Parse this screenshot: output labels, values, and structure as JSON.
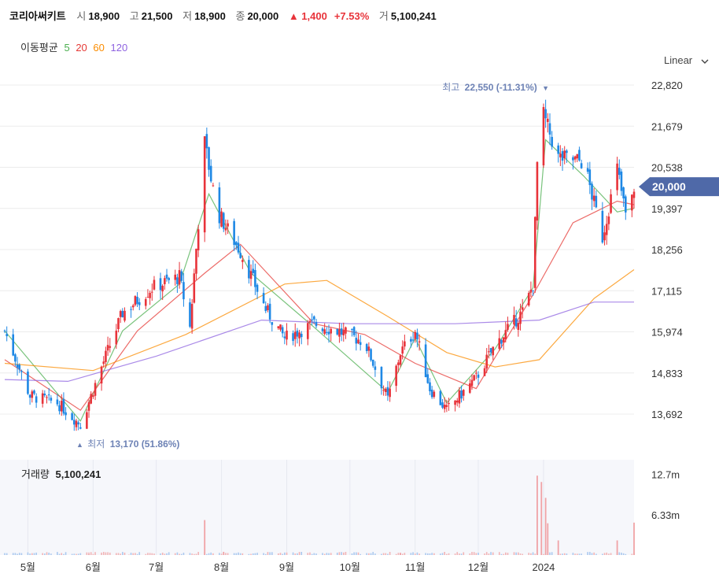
{
  "stock": {
    "name": "코리아써키트",
    "open_label": "시",
    "open": "18,900",
    "high_label": "고",
    "high": "21,500",
    "low_label": "저",
    "low": "18,900",
    "close_label": "종",
    "close": "20,000",
    "change": "▲ 1,400",
    "change_pct": "+7.53%",
    "volume_label": "거",
    "volume": "5,100,241"
  },
  "ma_legend": {
    "label": "이동평균",
    "periods": [
      "5",
      "20",
      "60",
      "120"
    ],
    "colors": [
      "#4caf50",
      "#e53935",
      "#fb8c00",
      "#8e63e0"
    ]
  },
  "scale_toggle": {
    "label": "Linear",
    "icon": "chevron-down-icon"
  },
  "colors": {
    "up": "#e8333a",
    "down": "#1e88e5",
    "current_price_bg": "#4f69a8",
    "annotation": "#6d82b5",
    "grid": "#ececec"
  },
  "chart_data": {
    "type": "candlestick",
    "price_axis": {
      "ticks": [
        "22,820",
        "21,679",
        "20,538",
        "19,397",
        "18,256",
        "17,115",
        "15,974",
        "14,833",
        "13,692"
      ],
      "ylim": [
        13100,
        23400
      ]
    },
    "current_price": "20,000",
    "high_annotation": {
      "label": "최고",
      "value": "22,550 (-11.31%)",
      "marker": "▼"
    },
    "low_annotation": {
      "label": "최저",
      "value": "13,170 (51.86%)",
      "marker": "▲"
    },
    "volume_panel": {
      "label": "거래량",
      "value": "5,100,241",
      "ticks": [
        "12.7m",
        "6.33m"
      ]
    },
    "time_axis": [
      "5월",
      "6월",
      "7월",
      "8월",
      "9월",
      "10월",
      "11월",
      "12월",
      "2024"
    ],
    "price_path": [
      [
        "2023-04-20",
        16000
      ],
      [
        "2023-05-02",
        14200
      ],
      [
        "2023-05-15",
        14000
      ],
      [
        "2023-05-26",
        13400
      ],
      [
        "2023-06-05",
        15000
      ],
      [
        "2023-06-15",
        16500
      ],
      [
        "2023-06-29",
        17200
      ],
      [
        "2023-07-12",
        17500
      ],
      [
        "2023-07-17",
        16100
      ],
      [
        "2023-07-24",
        21200
      ],
      [
        "2023-07-30",
        19300
      ],
      [
        "2023-08-10",
        18200
      ],
      [
        "2023-08-22",
        16600
      ],
      [
        "2023-08-31",
        15800
      ],
      [
        "2023-09-14",
        16200
      ],
      [
        "2023-09-25",
        16000
      ],
      [
        "2023-10-08",
        15700
      ],
      [
        "2023-10-19",
        14100
      ],
      [
        "2023-10-25",
        15400
      ],
      [
        "2023-11-01",
        16000
      ],
      [
        "2023-11-08",
        14400
      ],
      [
        "2023-11-16",
        13800
      ],
      [
        "2023-11-30",
        14700
      ],
      [
        "2023-12-09",
        15600
      ],
      [
        "2023-12-23",
        16600
      ],
      [
        "2023-12-27",
        17300
      ],
      [
        "2023-12-30",
        22300
      ],
      [
        "2024-01-08",
        20800
      ],
      [
        "2024-01-20",
        20700
      ],
      [
        "2024-01-29",
        18600
      ],
      [
        "2024-02-05",
        20500
      ],
      [
        "2024-02-10",
        18900
      ],
      [
        "2024-02-13",
        20000
      ]
    ],
    "ma_series": [
      {
        "name": "5",
        "color": "#4caf50",
        "values": [
          [
            "2023-04-20",
            16000
          ],
          [
            "2023-05-26",
            13500
          ],
          [
            "2023-06-15",
            16000
          ],
          [
            "2023-07-12",
            17300
          ],
          [
            "2023-07-26",
            19800
          ],
          [
            "2023-08-15",
            17600
          ],
          [
            "2023-09-14",
            16100
          ],
          [
            "2023-10-19",
            14300
          ],
          [
            "2023-11-01",
            15800
          ],
          [
            "2023-11-16",
            14000
          ],
          [
            "2023-12-09",
            15500
          ],
          [
            "2023-12-27",
            17200
          ],
          [
            "2024-01-02",
            21300
          ],
          [
            "2024-01-20",
            20300
          ],
          [
            "2024-02-05",
            19300
          ],
          [
            "2024-02-13",
            19400
          ]
        ]
      },
      {
        "name": "20",
        "color": "#e53935",
        "values": [
          [
            "2023-04-20",
            15200
          ],
          [
            "2023-05-26",
            13800
          ],
          [
            "2023-06-22",
            16000
          ],
          [
            "2023-07-24",
            17600
          ],
          [
            "2023-08-10",
            18400
          ],
          [
            "2023-09-14",
            16200
          ],
          [
            "2023-10-08",
            15900
          ],
          [
            "2023-11-01",
            15100
          ],
          [
            "2023-11-30",
            14400
          ],
          [
            "2023-12-27",
            17000
          ],
          [
            "2024-01-15",
            19000
          ],
          [
            "2024-02-05",
            19600
          ],
          [
            "2024-02-13",
            19500
          ]
        ]
      },
      {
        "name": "60",
        "color": "#fb8c00",
        "values": [
          [
            "2023-04-20",
            15100
          ],
          [
            "2023-06-01",
            14900
          ],
          [
            "2023-07-15",
            15900
          ],
          [
            "2023-08-31",
            17300
          ],
          [
            "2023-09-20",
            17400
          ],
          [
            "2023-10-19",
            16400
          ],
          [
            "2023-11-16",
            15400
          ],
          [
            "2023-12-09",
            15000
          ],
          [
            "2023-12-30",
            15200
          ],
          [
            "2024-01-25",
            16900
          ],
          [
            "2024-02-13",
            17700
          ]
        ]
      },
      {
        "name": "120",
        "color": "#8e63e0",
        "values": [
          [
            "2023-04-20",
            14650
          ],
          [
            "2023-05-20",
            14600
          ],
          [
            "2023-07-01",
            15300
          ],
          [
            "2023-08-20",
            16300
          ],
          [
            "2023-10-01",
            16200
          ],
          [
            "2023-11-20",
            16200
          ],
          [
            "2023-12-30",
            16300
          ],
          [
            "2024-01-25",
            16800
          ],
          [
            "2024-02-13",
            16800
          ]
        ]
      }
    ],
    "volume_spikes": [
      [
        "2023-05-30",
        0.1
      ],
      [
        "2023-06-18",
        0.05
      ],
      [
        "2023-07-24",
        5.5
      ],
      [
        "2023-08-02",
        0.5
      ],
      [
        "2023-10-25",
        0.3
      ],
      [
        "2023-12-29",
        12.5
      ],
      [
        "2023-12-31",
        11.5
      ],
      [
        "2024-01-02",
        9.0
      ],
      [
        "2024-01-03",
        5.0
      ],
      [
        "2024-01-08",
        2.3
      ],
      [
        "2024-02-05",
        2.3
      ],
      [
        "2024-02-13",
        5.1
      ]
    ],
    "volume_ylim": [
      0,
      15
    ]
  }
}
